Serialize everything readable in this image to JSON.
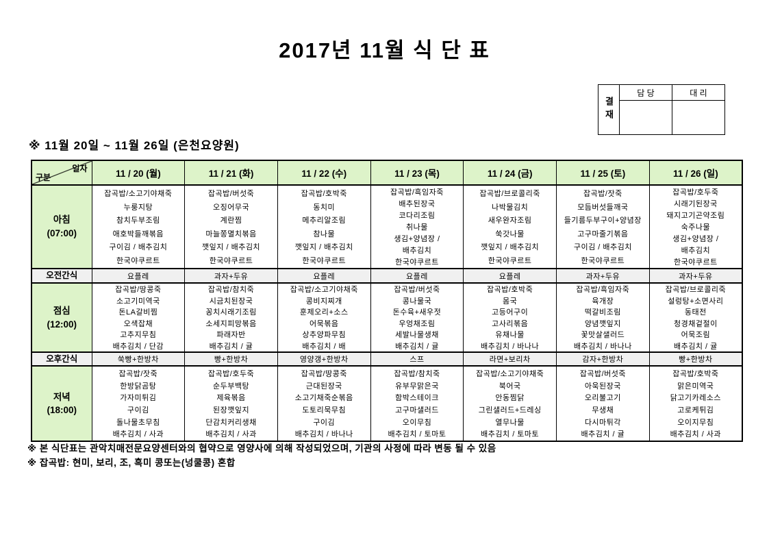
{
  "title": "2017년 11월 식 단 표",
  "approval": {
    "stamp_label": "결재",
    "cols": [
      "담 당",
      "대 리"
    ]
  },
  "subtitle": "※  11월  20일  ~  11월  26일  (은천요양원)",
  "table": {
    "corner_top": "일자",
    "corner_bottom": "구분",
    "days": [
      "11 / 20 (월)",
      "11 / 21 (화)",
      "11 / 22 (수)",
      "11 / 23 (목)",
      "11 / 24 (금)",
      "11 / 25 (토)",
      "11 / 26 (일)"
    ],
    "rows": [
      {
        "id": "breakfast",
        "kind": "meal",
        "label_lines": [
          "아침",
          "(07:00)"
        ],
        "cells": [
          [
            "잡곡밥/소고기야채죽",
            "누룽지탕",
            "참치두부조림",
            "애호박들깨볶음",
            "구이김 / 배추김치",
            "한국야쿠르트"
          ],
          [
            "잡곡밥/버섯죽",
            "오징어무국",
            "계란찜",
            "마늘쫑멸치볶음",
            "깻잎지 / 배추김치",
            "한국야쿠르트"
          ],
          [
            "잡곡밥/호박죽",
            "동치미",
            "메추리알조림",
            "참나물",
            "깻잎지 / 배추김치",
            "한국야쿠르트"
          ],
          [
            "잡곡밥/흑임자죽",
            "배추된장국",
            "코다리조림",
            "취나물",
            "생김+양념장 /",
            "배추김치",
            "한국야쿠르트"
          ],
          [
            "잡곡밥/브로콜리죽",
            "나박물김치",
            "새우완자조림",
            "쑥갓나물",
            "깻잎지 / 배추김치",
            "한국야쿠르트"
          ],
          [
            "잡곡밥/잣죽",
            "모듬버섯들깨국",
            "들기름두부구이+양념장",
            "고구마줄기볶음",
            "구이김 / 배추김치",
            "한국야쿠르트"
          ],
          [
            "잡곡밥/호두죽",
            "시래기된장국",
            "돼지고기곤약조림",
            "숙주나물",
            "생김+양념장 /",
            "배추김치",
            "한국야쿠르트"
          ]
        ]
      },
      {
        "id": "am-snack",
        "kind": "snack",
        "label_lines": [
          "오전간식"
        ],
        "cells": [
          "요플레",
          "과자+두유",
          "요플레",
          "요플레",
          "요플레",
          "과자+두유",
          "과자+두유"
        ]
      },
      {
        "id": "lunch",
        "kind": "meal",
        "label_lines": [
          "점심",
          "(12:00)"
        ],
        "cells": [
          [
            "잡곡밥/땅콩죽",
            "소고기미역국",
            "돈LA갈비찜",
            "오색잡채",
            "고추지무침",
            "배추김치 / 단감"
          ],
          [
            "잡곡밥/참치죽",
            "시금치된장국",
            "꽁치시래기조림",
            "소세지피망볶음",
            "파래자반",
            "배추김치 / 귤"
          ],
          [
            "잡곡밥/소고기야채죽",
            "콩비지찌개",
            "훈제오리+소스",
            "어묵볶음",
            "상추양파무침",
            "배추김치 / 배"
          ],
          [
            "잡곡밥/버섯죽",
            "콩나물국",
            "돈수육+새우젓",
            "우엉채조림",
            "세발나물생채",
            "배추김치 / 귤"
          ],
          [
            "잡곡밥/호박죽",
            "몸국",
            "고등어구이",
            "고사리볶음",
            "유채나물",
            "배추김치 / 바나나"
          ],
          [
            "잡곡밥/흑임자죽",
            "육개장",
            "떡갈비조림",
            "양념깻잎지",
            "꽃맛살샐러드",
            "배추김치 / 바나나"
          ],
          [
            "잡곡밥/브로콜리죽",
            "설렁탕+소면사리",
            "동태전",
            "청경채겉절이",
            "어묵조림",
            "배추김치 / 귤"
          ]
        ]
      },
      {
        "id": "pm-snack",
        "kind": "snack",
        "label_lines": [
          "오후간식"
        ],
        "cells": [
          "쑥빵+한방차",
          "빵+한방차",
          "영양갱+한방차",
          "스프",
          "라면+보리차",
          "감자+한방차",
          "빵+한방차"
        ]
      },
      {
        "id": "dinner",
        "kind": "meal",
        "label_lines": [
          "저녁",
          "(18:00)"
        ],
        "cells": [
          [
            "잡곡밥/잣죽",
            "한방닭곰탕",
            "가자미튀김",
            "구이김",
            "돌나물초무침",
            "배추김치 / 사과"
          ],
          [
            "잡곡밥/호두죽",
            "순두부백탕",
            "제육볶음",
            "된장깻잎지",
            "단감치커리생채",
            "배추김치 / 사과"
          ],
          [
            "잡곡밥/땅콩죽",
            "근대된장국",
            "소고기채죽순볶음",
            "도토리묵무침",
            "구이김",
            "배추김치 / 바나나"
          ],
          [
            "잡곡밥/참치죽",
            "유부무맑은국",
            "함박스테이크",
            "고구마샐러드",
            "오이무침",
            "배추김치 / 토마토"
          ],
          [
            "잡곡밥/소고기야채죽",
            "북어국",
            "안동찜닭",
            "그린샐러드+드레싱",
            "열무나물",
            "배추김치 / 토마토"
          ],
          [
            "잡곡밥/버섯죽",
            "아욱된장국",
            "오리불고기",
            "무생채",
            "다시마튀각",
            "배추김치 / 귤"
          ],
          [
            "잡곡밥/호박죽",
            "맑은미역국",
            "닭고기카레소스",
            "고로케튀김",
            "오이지무침",
            "배추김치 / 사과"
          ]
        ]
      }
    ]
  },
  "notes": [
    "※  본  식단표는  관악치매전문요양센터와의  협약으로  영양사에  의해  작성되었으며,  기관의  사정에  따라  변동  될  수  있음",
    "※  잡곡밥:  현미,  보리,  조,  흑미  콩또는(넝쿨콩)  혼합"
  ],
  "colors": {
    "header_green": "#ddf3c9",
    "snack_gray": "#f0f0f0",
    "border": "#000000"
  }
}
